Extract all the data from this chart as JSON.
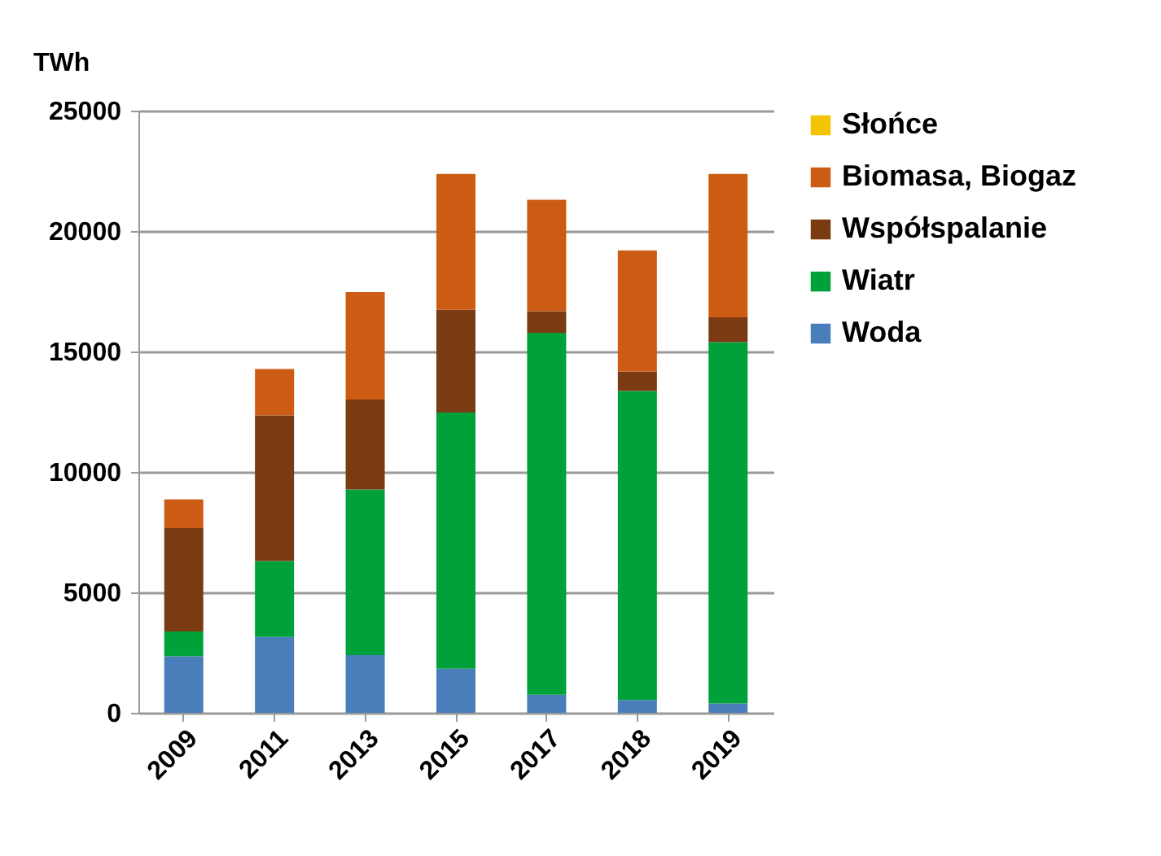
{
  "chart_data": {
    "type": "bar",
    "stacked": true,
    "ylabel": "TWh",
    "categories": [
      "2009",
      "2011",
      "2013",
      "2015",
      "2017",
      "2018",
      "2019"
    ],
    "series": [
      {
        "name": "Woda",
        "color": "#4a7ebb",
        "values": [
          2350,
          3150,
          2400,
          1830,
          750,
          530,
          390
        ]
      },
      {
        "name": "Wiatr",
        "color": "#00a13a",
        "values": [
          1030,
          3150,
          6870,
          10640,
          15030,
          12830,
          15000
        ]
      },
      {
        "name": "Współspalanie",
        "color": "#7b3b12",
        "values": [
          4290,
          6050,
          3740,
          4260,
          890,
          800,
          1030
        ]
      },
      {
        "name": "Biomasa, Biogaz",
        "color": "#cc5c14",
        "values": [
          1190,
          1920,
          4460,
          5640,
          4630,
          5040,
          5950
        ]
      },
      {
        "name": "Słońce",
        "color": "#f5c400",
        "values": [
          0,
          0,
          0,
          0,
          0,
          0,
          0
        ]
      }
    ],
    "ylim": [
      0,
      25000
    ],
    "yticks": [
      0,
      5000,
      10000,
      15000,
      20000,
      25000
    ],
    "grid": "y",
    "legend": "right"
  }
}
